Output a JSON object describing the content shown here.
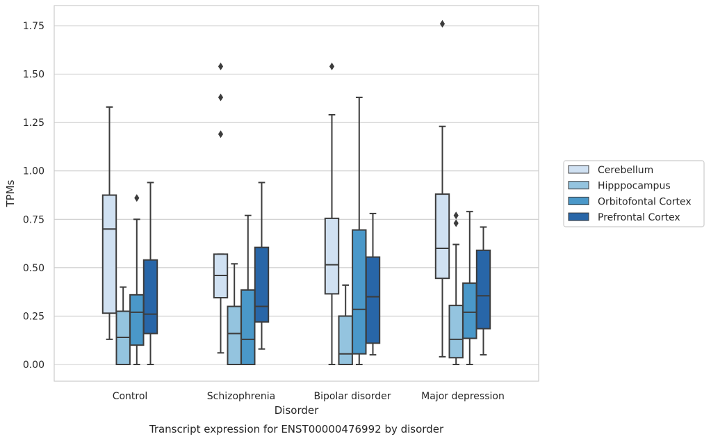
{
  "chart_data": {
    "type": "box",
    "title": "",
    "caption": "Transcript expression for ENST00000476992 by disorder",
    "xlabel": "Disorder",
    "ylabel": "TPMs",
    "ylim": [
      -0.085,
      1.85
    ],
    "yticks": [
      "0.00",
      "0.25",
      "0.50",
      "0.75",
      "1.00",
      "1.25",
      "1.50",
      "1.75"
    ],
    "grid": "horizontal",
    "legend_position": "right",
    "categories": [
      "Control",
      "Schizophrenia",
      "Bipolar disorder",
      "Major depression"
    ],
    "series": [
      {
        "name": "Cerebellum",
        "color": "#d0e1f2",
        "boxes": [
          {
            "whislo": 0.13,
            "q1": 0.265,
            "med": 0.7,
            "q3": 0.875,
            "whishi": 1.33,
            "fliers": []
          },
          {
            "whislo": 0.06,
            "q1": 0.345,
            "med": 0.46,
            "q3": 0.57,
            "whishi": 0.57,
            "fliers": [
              1.19,
              1.38,
              1.54
            ]
          },
          {
            "whislo": 0.0,
            "q1": 0.365,
            "med": 0.515,
            "q3": 0.755,
            "whishi": 1.29,
            "fliers": [
              1.54
            ]
          },
          {
            "whislo": 0.04,
            "q1": 0.445,
            "med": 0.6,
            "q3": 0.88,
            "whishi": 1.23,
            "fliers": [
              1.76
            ]
          }
        ]
      },
      {
        "name": "Hipppocampus",
        "color": "#94c4df",
        "boxes": [
          {
            "whislo": 0.0,
            "q1": 0.0,
            "med": 0.14,
            "q3": 0.275,
            "whishi": 0.4,
            "fliers": []
          },
          {
            "whislo": 0.0,
            "q1": 0.0,
            "med": 0.16,
            "q3": 0.3,
            "whishi": 0.52,
            "fliers": []
          },
          {
            "whislo": 0.0,
            "q1": 0.0,
            "med": 0.055,
            "q3": 0.25,
            "whishi": 0.41,
            "fliers": []
          },
          {
            "whislo": 0.0,
            "q1": 0.035,
            "med": 0.13,
            "q3": 0.305,
            "whishi": 0.62,
            "fliers": [
              0.73,
              0.77
            ]
          }
        ]
      },
      {
        "name": "Orbitofontal Cortex",
        "color": "#4a98c9",
        "boxes": [
          {
            "whislo": 0.0,
            "q1": 0.1,
            "med": 0.27,
            "q3": 0.36,
            "whishi": 0.75,
            "fliers": [
              0.86
            ]
          },
          {
            "whislo": 0.0,
            "q1": 0.0,
            "med": 0.13,
            "q3": 0.385,
            "whishi": 0.77,
            "fliers": []
          },
          {
            "whislo": 0.0,
            "q1": 0.055,
            "med": 0.285,
            "q3": 0.695,
            "whishi": 1.38,
            "fliers": []
          },
          {
            "whislo": 0.0,
            "q1": 0.135,
            "med": 0.27,
            "q3": 0.42,
            "whishi": 0.79,
            "fliers": []
          }
        ]
      },
      {
        "name": "Prefrontal Cortex",
        "color": "#2866a8",
        "boxes": [
          {
            "whislo": 0.0,
            "q1": 0.16,
            "med": 0.26,
            "q3": 0.54,
            "whishi": 0.94,
            "fliers": []
          },
          {
            "whislo": 0.08,
            "q1": 0.22,
            "med": 0.3,
            "q3": 0.605,
            "whishi": 0.94,
            "fliers": []
          },
          {
            "whislo": 0.05,
            "q1": 0.11,
            "med": 0.35,
            "q3": 0.555,
            "whishi": 0.78,
            "fliers": []
          },
          {
            "whislo": 0.05,
            "q1": 0.185,
            "med": 0.355,
            "q3": 0.59,
            "whishi": 0.71,
            "fliers": []
          }
        ]
      }
    ]
  },
  "colors": {
    "grid": "#cccccc",
    "frame": "#cccccc",
    "line": "#3c3c3c",
    "text": "#262626",
    "legend_frame": "#cccccc"
  }
}
